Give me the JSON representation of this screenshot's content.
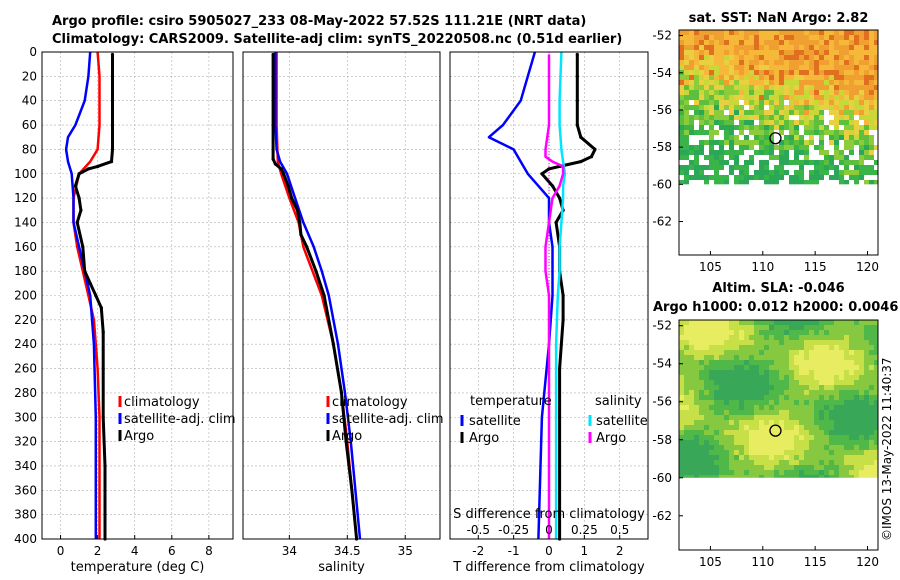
{
  "title": {
    "line1": "Argo profile: csiro 5905027_233 08-May-2022 57.52S 111.21E (NRT data)",
    "line2": "Climatology: CARS2009. Satellite-adj clim: synTS_20220508.nc (0.51d earlier)"
  },
  "watermark": "©IMOS 13-May-2022 11:40:37",
  "colors": {
    "climatology": "#ff0000",
    "satellite": "#0000ff",
    "argo": "#000000",
    "sal_sat": "#00e5ff",
    "sal_argo": "#ff00ff",
    "grid": "#b0b0b0"
  },
  "chart_data": [
    {
      "id": "temperature",
      "type": "line",
      "xlabel": "temperature (deg C)",
      "xlim": [
        -1,
        9.3
      ],
      "ylim": [
        400,
        0
      ],
      "xticks": [
        0,
        2,
        4,
        6,
        8
      ],
      "yticks": [
        0,
        20,
        40,
        60,
        80,
        100,
        120,
        140,
        160,
        180,
        200,
        220,
        240,
        260,
        280,
        300,
        320,
        340,
        360,
        380,
        400
      ],
      "legend": [
        "climatology",
        "satellite-adj. clim",
        "Argo"
      ],
      "series": [
        {
          "name": "climatology",
          "color": "#ff0000",
          "depth": [
            0,
            20,
            40,
            60,
            80,
            90,
            100,
            120,
            140,
            160,
            180,
            200,
            220,
            240,
            260,
            300,
            340,
            400
          ],
          "values": [
            2.0,
            2.1,
            2.1,
            2.1,
            2.0,
            1.6,
            1.0,
            0.7,
            0.7,
            0.9,
            1.2,
            1.5,
            1.8,
            1.9,
            2.0,
            2.1,
            2.1,
            2.1
          ]
        },
        {
          "name": "satellite-adj. clim",
          "color": "#0000ff",
          "depth": [
            0,
            20,
            40,
            60,
            70,
            80,
            90,
            100,
            120,
            140,
            160,
            180,
            200,
            240,
            300,
            400
          ],
          "values": [
            1.6,
            1.5,
            1.3,
            0.8,
            0.4,
            0.3,
            0.4,
            0.6,
            0.7,
            0.7,
            1.0,
            1.3,
            1.6,
            1.8,
            1.9,
            1.9
          ]
        },
        {
          "name": "Argo",
          "color": "#000000",
          "depth": [
            2,
            20,
            40,
            60,
            80,
            90,
            94,
            96,
            100,
            110,
            120,
            130,
            140,
            160,
            180,
            190,
            200,
            210,
            230,
            260,
            300,
            340,
            380,
            400
          ],
          "values": [
            2.8,
            2.8,
            2.8,
            2.8,
            2.8,
            2.75,
            2.0,
            1.5,
            1.0,
            0.8,
            1.0,
            1.1,
            0.9,
            1.2,
            1.3,
            1.6,
            1.9,
            2.2,
            2.3,
            2.3,
            2.3,
            2.4,
            2.4,
            2.4
          ]
        }
      ]
    },
    {
      "id": "salinity",
      "type": "line",
      "xlabel": "salinity",
      "xlim": [
        33.6,
        35.3
      ],
      "ylim": [
        400,
        0
      ],
      "xticks": [
        34,
        34.5,
        35
      ],
      "legend": [
        "climatology",
        "satellite-adj. clim",
        "Argo"
      ],
      "series": [
        {
          "name": "climatology",
          "color": "#ff0000",
          "depth": [
            0,
            60,
            90,
            100,
            120,
            140,
            160,
            180,
            200,
            240,
            280,
            320,
            360,
            400
          ],
          "values": [
            33.89,
            33.89,
            33.9,
            33.93,
            34.0,
            34.08,
            34.12,
            34.2,
            34.28,
            34.38,
            34.45,
            34.5,
            34.54,
            34.58
          ]
        },
        {
          "name": "satellite-adj. clim",
          "color": "#0000ff",
          "depth": [
            0,
            60,
            80,
            90,
            100,
            120,
            140,
            160,
            180,
            200,
            240,
            280,
            320,
            360,
            400
          ],
          "values": [
            33.88,
            33.88,
            33.89,
            33.92,
            33.98,
            34.05,
            34.12,
            34.21,
            34.28,
            34.34,
            34.42,
            34.48,
            34.53,
            34.57,
            34.61
          ]
        },
        {
          "name": "Argo",
          "color": "#000000",
          "depth": [
            2,
            60,
            88,
            92,
            96,
            100,
            110,
            120,
            130,
            140,
            150,
            160,
            180,
            200,
            240,
            280,
            320,
            360,
            400
          ],
          "values": [
            33.86,
            33.86,
            33.86,
            33.88,
            33.93,
            33.95,
            33.99,
            34.02,
            34.07,
            34.09,
            34.1,
            34.15,
            34.23,
            34.3,
            34.38,
            34.45,
            34.49,
            34.54,
            34.58
          ]
        }
      ]
    },
    {
      "id": "difference",
      "type": "line",
      "xlabel": "T difference from climatology",
      "top_xlabel": "S difference from climatology",
      "xlim": [
        -2.8,
        2.8
      ],
      "ylim": [
        400,
        0
      ],
      "xticks": [
        -2,
        -1,
        0,
        1,
        2
      ],
      "top_xticks": [
        "-0.5",
        "-0.25",
        "0",
        "0.25",
        "0.5"
      ],
      "top_xtick_values": [
        -2,
        -1,
        0,
        1,
        2
      ],
      "legend_temperature_title": "temperature",
      "legend_salinity_title": "salinity",
      "legend_temperature": [
        "satellite",
        "Argo"
      ],
      "legend_salinity": [
        "satellite",
        "Argo"
      ],
      "series": [
        {
          "name": "T satellite",
          "color": "#0000ff",
          "depth": [
            0,
            20,
            40,
            60,
            70,
            80,
            90,
            100,
            120,
            140,
            160,
            180,
            200,
            240,
            300,
            400
          ],
          "values": [
            -0.4,
            -0.6,
            -0.8,
            -1.3,
            -1.7,
            -1.0,
            -0.8,
            -0.6,
            0.0,
            0.0,
            0.1,
            0.1,
            0.1,
            0.0,
            -0.2,
            -0.3
          ]
        },
        {
          "name": "T Argo",
          "color": "#000000",
          "depth": [
            2,
            20,
            40,
            60,
            70,
            80,
            86,
            90,
            94,
            96,
            100,
            110,
            120,
            130,
            140,
            160,
            180,
            200,
            220,
            260,
            300,
            340,
            380,
            400
          ],
          "values": [
            0.8,
            0.8,
            0.8,
            0.8,
            0.9,
            1.3,
            1.2,
            0.9,
            0.3,
            0.0,
            -0.2,
            0.1,
            0.3,
            0.4,
            0.2,
            0.3,
            0.3,
            0.4,
            0.4,
            0.3,
            0.3,
            0.3,
            0.3,
            0.3
          ]
        },
        {
          "name": "S satellite",
          "color": "#00e5ff",
          "depth": [
            0,
            40,
            60,
            80,
            90,
            100,
            110,
            120,
            140,
            160,
            180,
            200,
            240,
            300,
            400
          ],
          "values": [
            0.35,
            0.3,
            0.3,
            0.35,
            0.4,
            0.45,
            0.4,
            0.4,
            0.35,
            0.3,
            0.3,
            0.25,
            0.2,
            0.2,
            0.2
          ]
        },
        {
          "name": "S Argo",
          "color": "#ff00ff",
          "depth": [
            2,
            40,
            60,
            80,
            86,
            90,
            94,
            100,
            110,
            120,
            140,
            160,
            180,
            200,
            240,
            300,
            400
          ],
          "values": [
            0.0,
            0.0,
            0.0,
            -0.1,
            -0.1,
            0.1,
            0.4,
            0.4,
            0.3,
            0.1,
            0.0,
            -0.1,
            -0.1,
            0.0,
            0.0,
            0.0,
            0.0
          ]
        }
      ]
    },
    {
      "id": "sst_map",
      "type": "heatmap",
      "title": "sat. SST: NaN Argo: 2.82",
      "xlim": [
        102,
        121
      ],
      "ylim": [
        -63.8,
        -51.7
      ],
      "xticks": [
        105,
        110,
        115,
        120
      ],
      "yticks": [
        -52,
        -54,
        -56,
        -58,
        -60,
        -62
      ],
      "data_bottom": -60,
      "argo_position": {
        "lon": 111.21,
        "lat": -57.52
      }
    },
    {
      "id": "sla_map",
      "type": "heatmap",
      "title": "Altim. SLA: -0.046",
      "subtitle": "Argo h1000: 0.012 h2000: 0.0046",
      "xlim": [
        102,
        121
      ],
      "ylim": [
        -63.8,
        -51.7
      ],
      "xticks": [
        105,
        110,
        115,
        120
      ],
      "yticks": [
        -52,
        -54,
        -56,
        -58,
        -60,
        -62
      ],
      "data_bottom": -60,
      "argo_position": {
        "lon": 111.21,
        "lat": -57.52
      }
    }
  ]
}
